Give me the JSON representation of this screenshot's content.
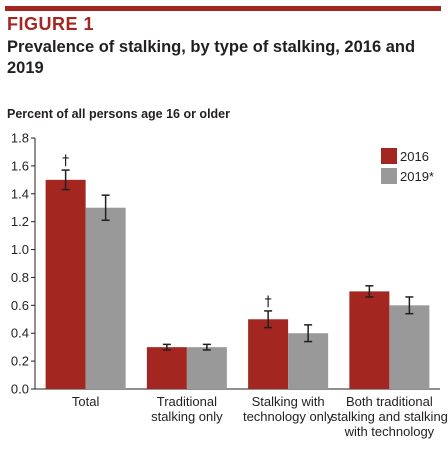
{
  "figure": {
    "label": "FIGURE 1",
    "title": "Prevalence of stalking, by type of stalking, 2016 and 2019",
    "unit_label": "Percent of all persons age 16 or older"
  },
  "colors": {
    "series_2016": "#a32620",
    "series_2019": "#999999",
    "accent": "#a32620"
  },
  "chart_data": {
    "type": "bar",
    "title": "Prevalence of stalking, by type of stalking, 2016 and 2019",
    "ylabel": "Percent of all persons age 16 or older",
    "xlabel": "",
    "ylim": [
      0,
      1.8
    ],
    "yticks": [
      "0.0",
      "0.2",
      "0.4",
      "0.6",
      "0.8",
      "1.0",
      "1.2",
      "1.4",
      "1.6",
      "1.8"
    ],
    "grid": false,
    "legend_position": "top-right",
    "categories": [
      [
        "Total"
      ],
      [
        "Traditional",
        "stalking only"
      ],
      [
        "Stalking with",
        "technology only"
      ],
      [
        "Both traditional",
        "stalking and stalking",
        "with technology"
      ]
    ],
    "series": [
      {
        "name": "2016",
        "values": [
          1.5,
          0.3,
          0.5,
          0.7
        ],
        "error": [
          0.07,
          0.02,
          0.06,
          0.04
        ],
        "markers": [
          "†",
          "",
          "†",
          ""
        ]
      },
      {
        "name": "2019*",
        "values": [
          1.3,
          0.3,
          0.4,
          0.6
        ],
        "error": [
          0.09,
          0.02,
          0.06,
          0.06
        ],
        "markers": [
          "",
          "",
          "",
          ""
        ]
      }
    ]
  }
}
